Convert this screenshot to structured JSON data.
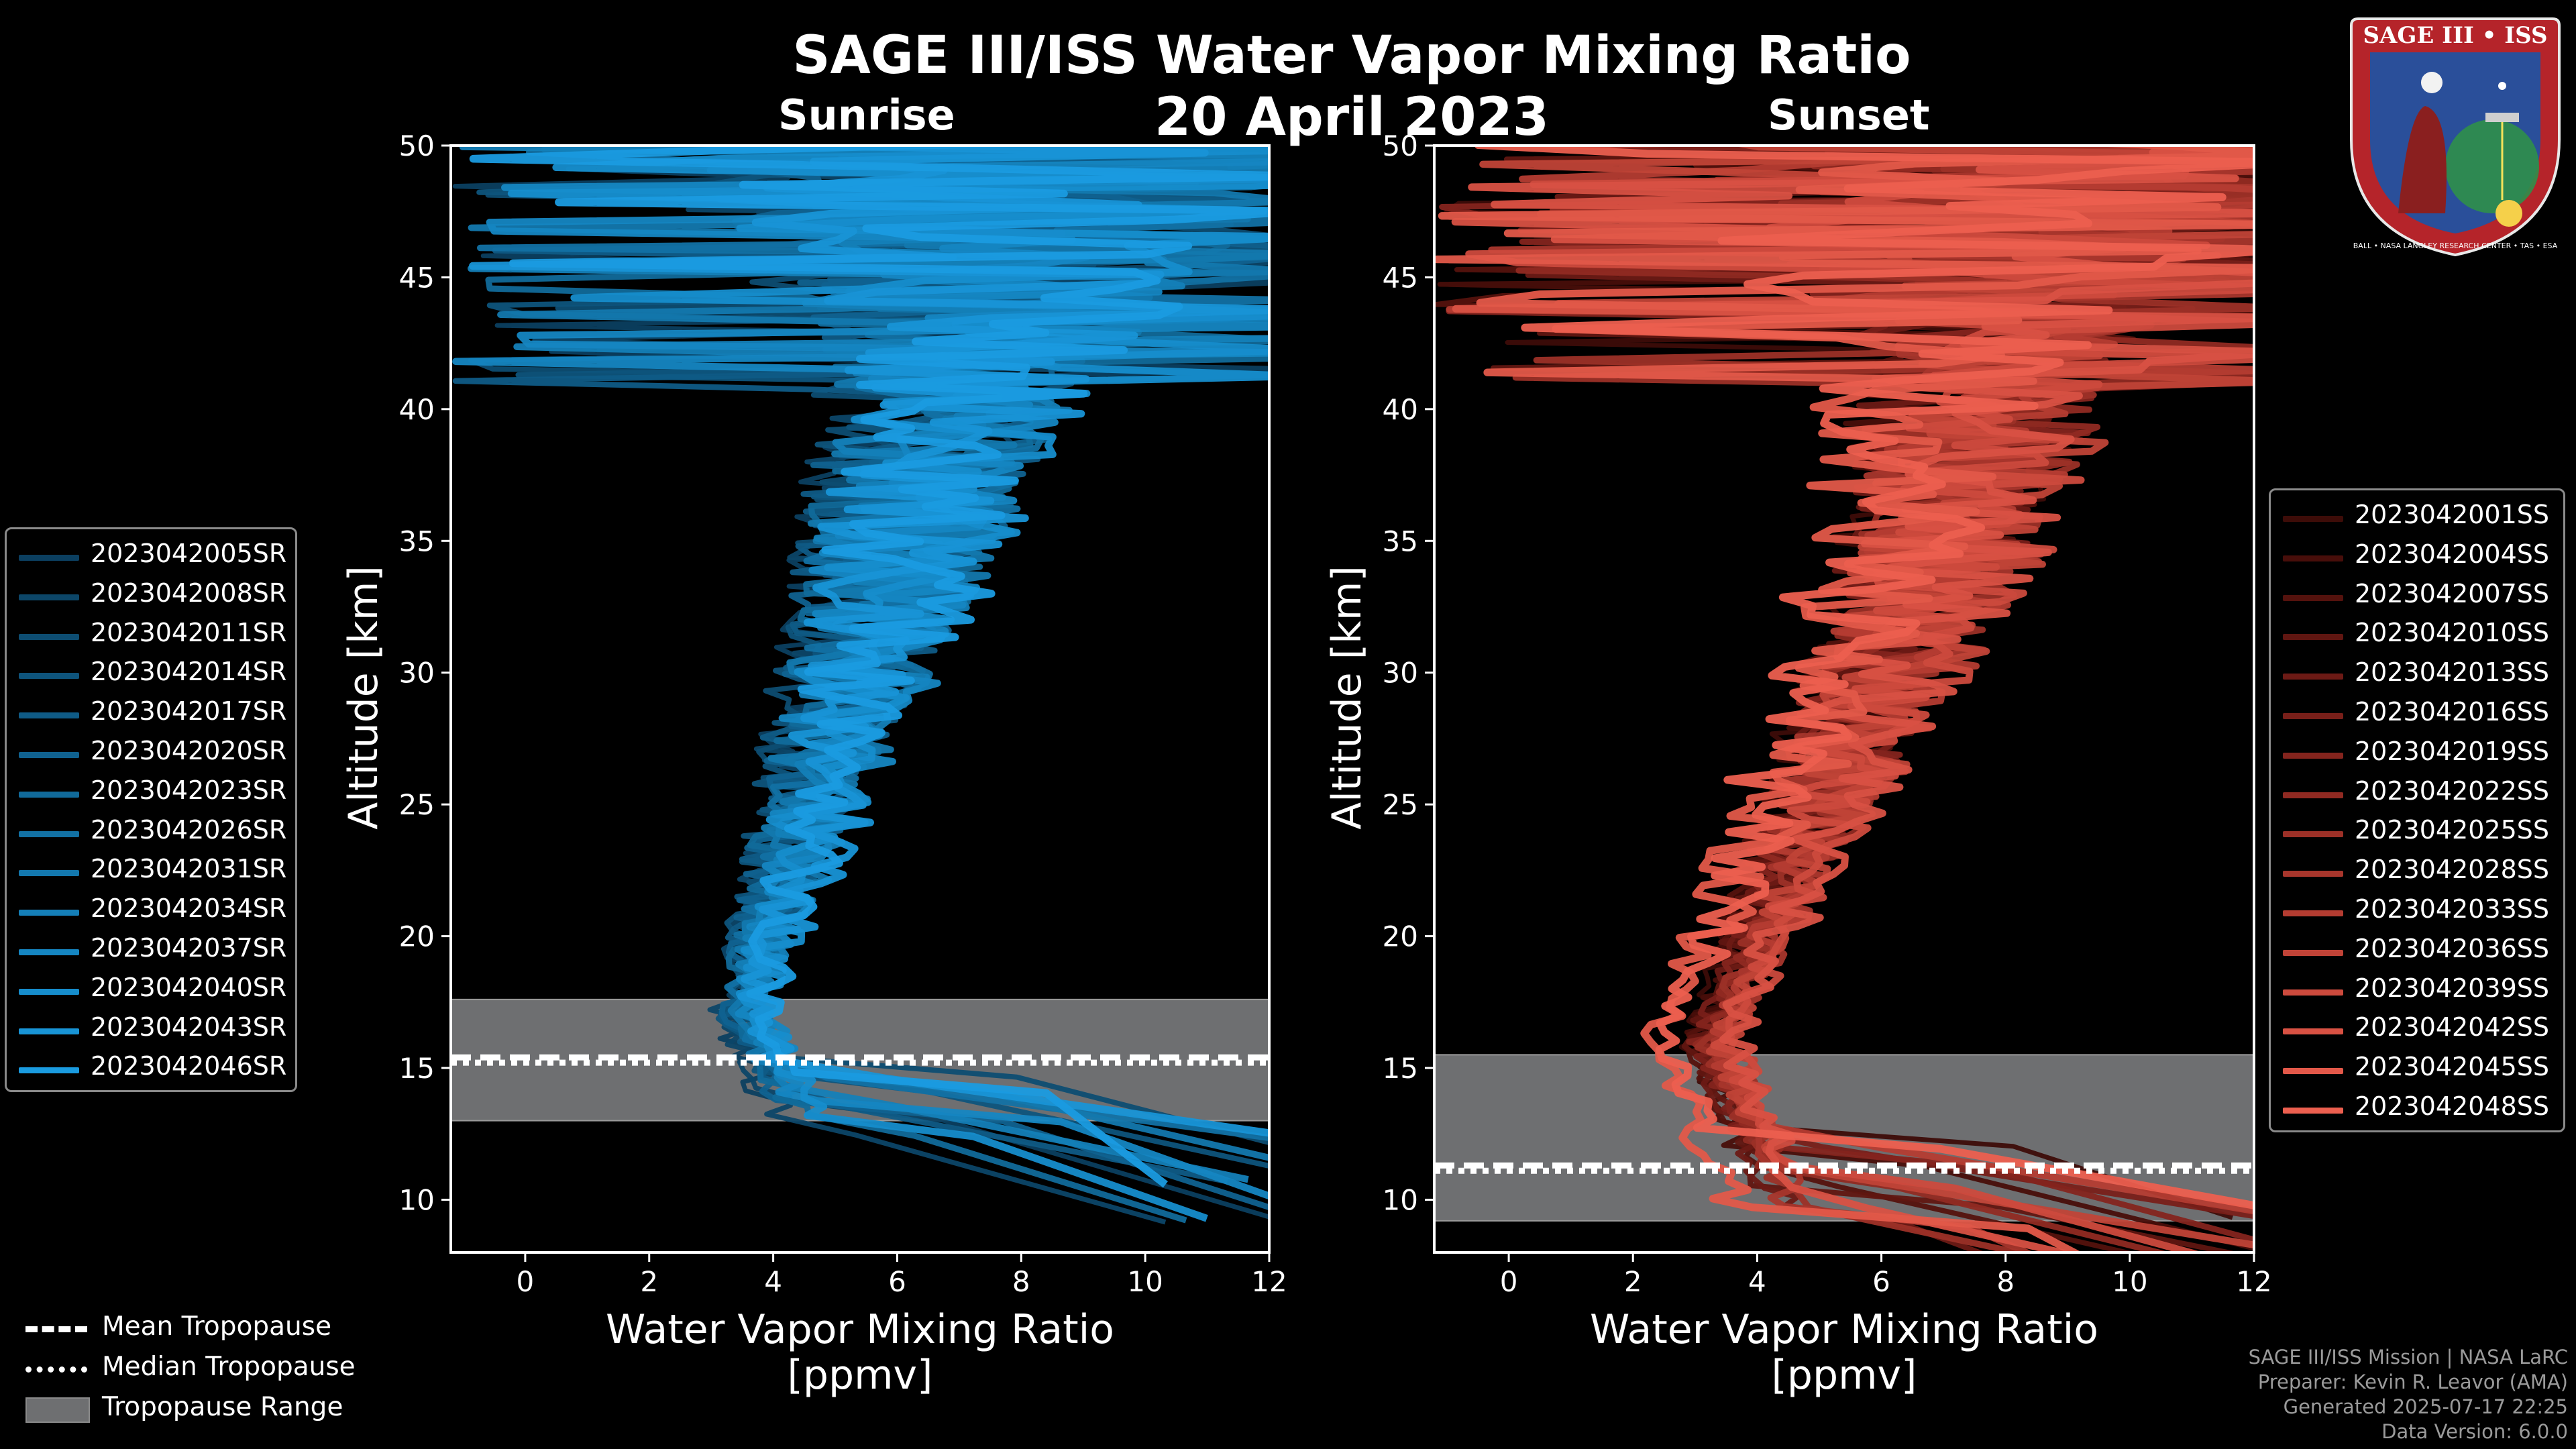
{
  "title": "SAGE III/ISS Water Vapor Mixing Ratio",
  "date": "20 April 2023",
  "colors": {
    "sunrise": "#1a8fd6",
    "sunset": "#e85a48",
    "tropopause_fill": "#6e6f71",
    "background": "#000000"
  },
  "chart_data": [
    {
      "type": "line",
      "title": "Sunrise",
      "xlabel": "Water Vapor Mixing Ratio [ppmv]",
      "xlabel_lines": [
        "Water Vapor Mixing Ratio",
        "[ppmv]"
      ],
      "ylabel": "Altitude [km]",
      "xlim": [
        -1.2,
        12
      ],
      "ylim": [
        8,
        50
      ],
      "xticks": [
        0,
        2,
        4,
        6,
        8,
        10,
        12
      ],
      "yticks": [
        10,
        15,
        20,
        25,
        30,
        35,
        40,
        45,
        50
      ],
      "tropopause": {
        "min_km": 13.0,
        "max_km": 17.6,
        "mean_km": 15.4,
        "median_km": 15.2
      },
      "profile_model": {
        "min_ppmv": 3.2,
        "min_alt_km": 17.5,
        "ppmv_at_35km": 5.8,
        "ppmv_at_45km": 7.2
      },
      "series": [
        {
          "name": "2023042005SR",
          "color": "#0b3f60"
        },
        {
          "name": "2023042008SR",
          "color": "#0c4668"
        },
        {
          "name": "2023042011SR",
          "color": "#0d4d72"
        },
        {
          "name": "2023042014SR",
          "color": "#0e547c"
        },
        {
          "name": "2023042017SR",
          "color": "#0f5b86"
        },
        {
          "name": "2023042020SR",
          "color": "#106290"
        },
        {
          "name": "2023042023SR",
          "color": "#116a9a"
        },
        {
          "name": "2023042026SR",
          "color": "#1271a4"
        },
        {
          "name": "2023042031SR",
          "color": "#1378ae"
        },
        {
          "name": "2023042034SR",
          "color": "#147fb8"
        },
        {
          "name": "2023042037SR",
          "color": "#1586c2"
        },
        {
          "name": "2023042040SR",
          "color": "#168dcc"
        },
        {
          "name": "2023042043SR",
          "color": "#1894d6"
        },
        {
          "name": "2023042046SR",
          "color": "#1a9be0"
        }
      ]
    },
    {
      "type": "line",
      "title": "Sunset",
      "xlabel": "Water Vapor Mixing Ratio [ppmv]",
      "xlabel_lines": [
        "Water Vapor Mixing Ratio",
        "[ppmv]"
      ],
      "ylabel": "Altitude [km]",
      "xlim": [
        -1.2,
        12
      ],
      "ylim": [
        8,
        50
      ],
      "xticks": [
        0,
        2,
        4,
        6,
        8,
        10,
        12
      ],
      "yticks": [
        10,
        15,
        20,
        25,
        30,
        35,
        40,
        45,
        50
      ],
      "tropopause": {
        "min_km": 9.2,
        "max_km": 15.5,
        "mean_km": 11.3,
        "median_km": 11.1
      },
      "profile_model": {
        "min_ppmv": 3.0,
        "min_alt_km": 16.0,
        "ppmv_at_35km": 6.8,
        "ppmv_at_45km": 8.0
      },
      "series": [
        {
          "name": "2023042001SS",
          "color": "#3d0c08"
        },
        {
          "name": "2023042004SS",
          "color": "#480e0a"
        },
        {
          "name": "2023042007SS",
          "color": "#54120d"
        },
        {
          "name": "2023042010SS",
          "color": "#601611"
        },
        {
          "name": "2023042013SS",
          "color": "#6c1a15"
        },
        {
          "name": "2023042016SS",
          "color": "#781f19"
        },
        {
          "name": "2023042019SS",
          "color": "#84241d"
        },
        {
          "name": "2023042022SS",
          "color": "#902a22"
        },
        {
          "name": "2023042025SS",
          "color": "#9c3027"
        },
        {
          "name": "2023042028SS",
          "color": "#a8362c"
        },
        {
          "name": "2023042033SS",
          "color": "#b43c31"
        },
        {
          "name": "2023042036SS",
          "color": "#c04337"
        },
        {
          "name": "2023042039SS",
          "color": "#cc4a3d"
        },
        {
          "name": "2023042042SS",
          "color": "#d85143"
        },
        {
          "name": "2023042045SS",
          "color": "#e25849"
        },
        {
          "name": "2023042048SS",
          "color": "#ec5f4f"
        }
      ]
    }
  ],
  "legend_tropopause": {
    "mean": "Mean Tropopause",
    "median": "Median Tropopause",
    "range": "Tropopause Range"
  },
  "badge": {
    "text": "SAGE III • ISS",
    "bottom_text": "BALL • NASA LANGLEY RESEARCH CENTER • TAS • ESA"
  },
  "credits": [
    "SAGE III/ISS Mission | NASA LaRC",
    "Preparer: Kevin R. Leavor (AMA)",
    "Generated 2025-07-17 22:25",
    "Data Version: 6.0.0"
  ]
}
